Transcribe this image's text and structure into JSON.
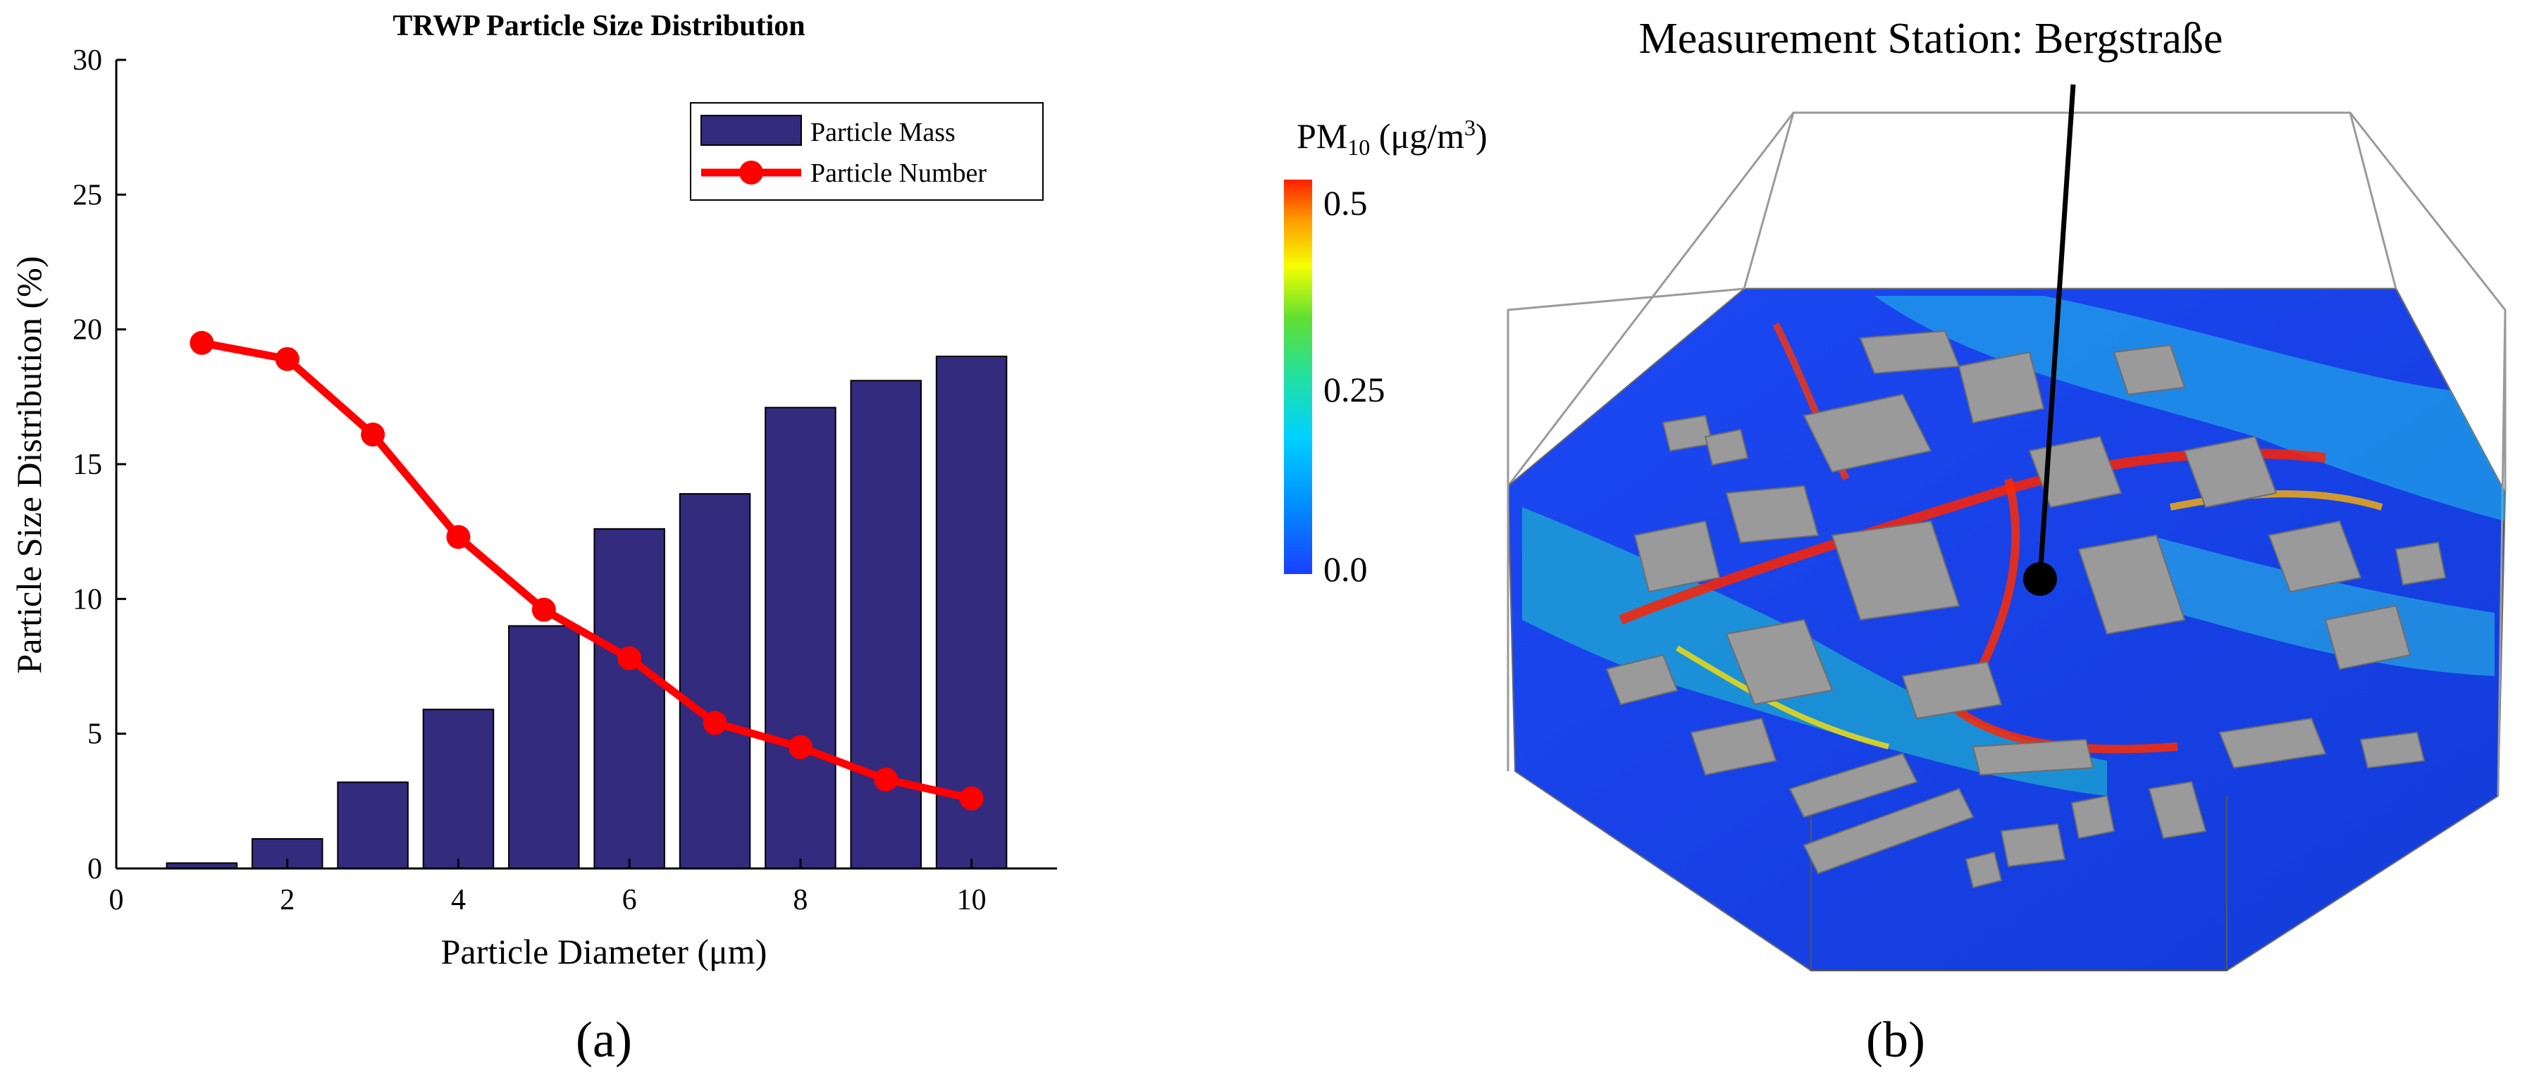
{
  "chart_data": [
    {
      "type": "bar+line",
      "title": "TRWP Particle Size Distribution",
      "xlabel": "Particle Diameter (μm)",
      "ylabel": "Particle Size Distribution (%)",
      "xlim": [
        0,
        11
      ],
      "ylim": [
        0,
        30
      ],
      "xticks": [
        0,
        2,
        4,
        6,
        8,
        10
      ],
      "yticks": [
        0,
        5,
        10,
        15,
        20,
        25,
        30
      ],
      "x": [
        1,
        2,
        3,
        4,
        5,
        6,
        7,
        8,
        9,
        10
      ],
      "series": [
        {
          "name": "Particle Mass",
          "type": "bar",
          "color": "#332b7e",
          "values": [
            0.2,
            1.1,
            3.2,
            5.9,
            9.0,
            12.6,
            13.9,
            17.1,
            18.1,
            19.0
          ]
        },
        {
          "name": "Particle Number",
          "type": "line",
          "color": "#ff0000",
          "values": [
            19.5,
            18.9,
            16.1,
            12.3,
            9.6,
            7.8,
            5.4,
            4.5,
            3.3,
            2.6
          ]
        }
      ],
      "legend": "top-right",
      "grid": false,
      "panel_label": "(a)"
    },
    {
      "type": "heatmap",
      "title": "Measurement Station: Bergstraße",
      "colorbar": {
        "label_main": "PM",
        "label_sub": "10",
        "label_unit_pre": " (μg/m",
        "label_unit_sup": "3",
        "label_unit_post": ")",
        "ticks": [
          "0.5",
          "0.25",
          "0.0"
        ],
        "range": [
          0,
          0.5
        ],
        "colors": [
          "#1a3fff",
          "#00b4ff",
          "#22e0c8",
          "#3fdc3a",
          "#f5ff00",
          "#ff9a00",
          "#ff1e00"
        ]
      },
      "panel_label": "(b)"
    }
  ]
}
